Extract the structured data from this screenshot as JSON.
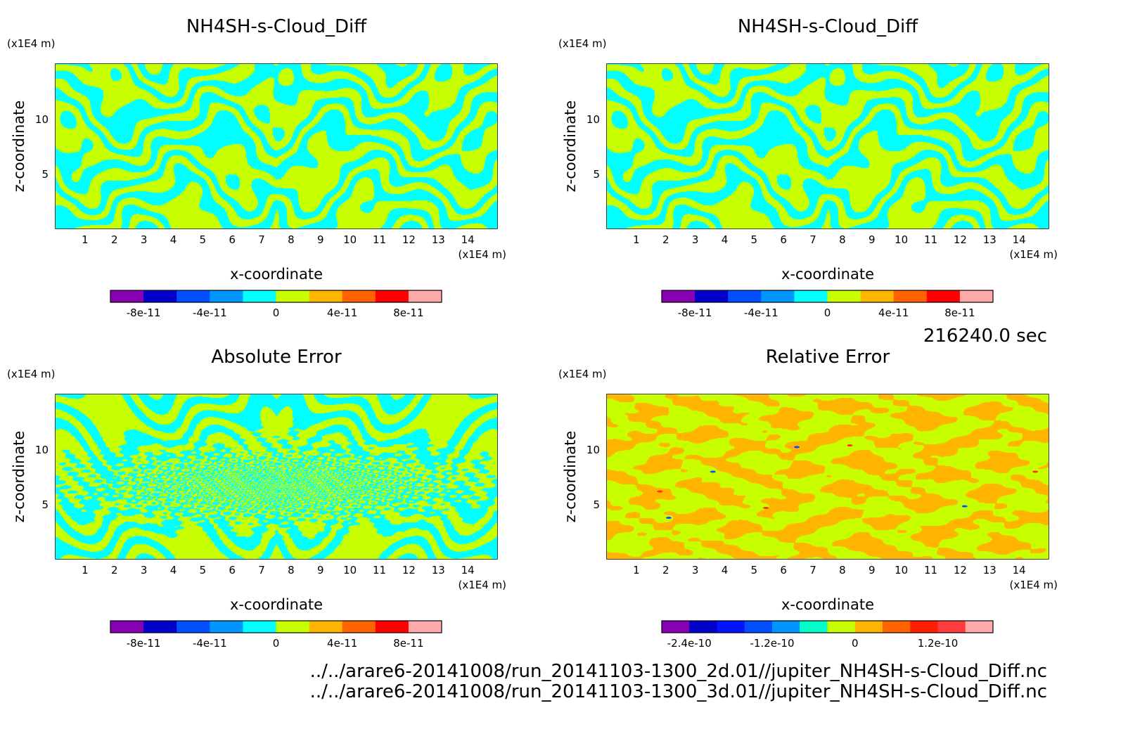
{
  "time_label": "216240.0 sec",
  "file_paths": [
    "../../arare6-20141008/run_20141103-1300_2d.01//jupiter_NH4SH-s-Cloud_Diff.nc",
    "../../arare6-20141008/run_20141103-1300_3d.01//jupiter_NH4SH-s-Cloud_Diff.nc"
  ],
  "chart_data": [
    {
      "type": "heatmap",
      "title": "NH4SH-s-Cloud_Diff",
      "xlabel": "x-coordinate",
      "ylabel": "z-coordinate",
      "x_unit": "(x1E4 m)",
      "z_unit": "(x1E4 m)",
      "xlim": [
        0,
        15
      ],
      "ylim": [
        0,
        15
      ],
      "xticks": [
        "1",
        "2",
        "3",
        "4",
        "5",
        "6",
        "7",
        "8",
        "9",
        "10",
        "11",
        "12",
        "13",
        "14"
      ],
      "yticks": [
        "5",
        "10"
      ],
      "pattern": "banded",
      "dominant_colors": [
        "#00ffff",
        "#c8ff00"
      ],
      "colorbar": {
        "colors": [
          "#8800b4",
          "#0000c8",
          "#0050ff",
          "#0096ff",
          "#00ffff",
          "#c8ff00",
          "#ffb400",
          "#ff6400",
          "#ff0000",
          "#ffaaaa"
        ],
        "tick_labels": [
          "-8e-11",
          "-4e-11",
          "0",
          "4e-11",
          "8e-11"
        ]
      }
    },
    {
      "type": "heatmap",
      "title": "NH4SH-s-Cloud_Diff",
      "xlabel": "x-coordinate",
      "ylabel": "z-coordinate",
      "x_unit": "(x1E4 m)",
      "z_unit": "(x1E4 m)",
      "xlim": [
        0,
        15
      ],
      "ylim": [
        0,
        15
      ],
      "xticks": [
        "1",
        "2",
        "3",
        "4",
        "5",
        "6",
        "7",
        "8",
        "9",
        "10",
        "11",
        "12",
        "13",
        "14"
      ],
      "yticks": [
        "5",
        "10"
      ],
      "pattern": "banded",
      "dominant_colors": [
        "#00ffff",
        "#c8ff00"
      ],
      "colorbar": {
        "colors": [
          "#8800b4",
          "#0000c8",
          "#0050ff",
          "#0096ff",
          "#00ffff",
          "#c8ff00",
          "#ffb400",
          "#ff6400",
          "#ff0000",
          "#ffaaaa"
        ],
        "tick_labels": [
          "-8e-11",
          "-4e-11",
          "0",
          "4e-11",
          "8e-11"
        ]
      }
    },
    {
      "type": "heatmap",
      "title": "Absolute Error",
      "xlabel": "x-coordinate",
      "ylabel": "z-coordinate",
      "x_unit": "(x1E4 m)",
      "z_unit": "(x1E4 m)",
      "xlim": [
        0,
        15
      ],
      "ylim": [
        0,
        15
      ],
      "xticks": [
        "1",
        "2",
        "3",
        "4",
        "5",
        "6",
        "7",
        "8",
        "9",
        "10",
        "11",
        "12",
        "13",
        "14"
      ],
      "yticks": [
        "5",
        "10"
      ],
      "pattern": "banded-noisy",
      "dominant_colors": [
        "#00ffff",
        "#c8ff00"
      ],
      "colorbar": {
        "colors": [
          "#8800b4",
          "#0000c8",
          "#0050ff",
          "#0096ff",
          "#00ffff",
          "#c8ff00",
          "#ffb400",
          "#ff6400",
          "#ff0000",
          "#ffaaaa"
        ],
        "tick_labels": [
          "-8e-11",
          "-4e-11",
          "0",
          "4e-11",
          "8e-11"
        ]
      }
    },
    {
      "type": "heatmap",
      "title": "Relative Error",
      "xlabel": "x-coordinate",
      "ylabel": "z-coordinate",
      "x_unit": "(x1E4 m)",
      "z_unit": "(x1E4 m)",
      "xlim": [
        0,
        15
      ],
      "ylim": [
        0,
        15
      ],
      "xticks": [
        "1",
        "2",
        "3",
        "4",
        "5",
        "6",
        "7",
        "8",
        "9",
        "10",
        "11",
        "12",
        "13",
        "14"
      ],
      "yticks": [
        "5",
        "10"
      ],
      "pattern": "mottled",
      "dominant_colors": [
        "#ffb400",
        "#c8ff00"
      ],
      "colorbar": {
        "colors": [
          "#8800b4",
          "#0000c8",
          "#0014ff",
          "#0050ff",
          "#0096ff",
          "#00ffc8",
          "#c8ff00",
          "#ffb400",
          "#ff6400",
          "#ff1e00",
          "#ff3c3c",
          "#ffaaaa"
        ],
        "tick_labels": [
          "-2.4e-10",
          "-1.2e-10",
          "0",
          "1.2e-10"
        ]
      }
    }
  ]
}
